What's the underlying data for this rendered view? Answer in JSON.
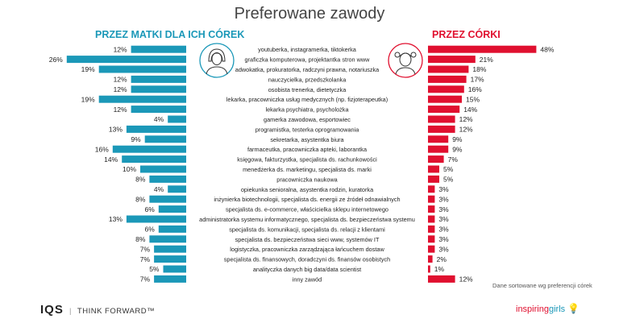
{
  "chart_data": {
    "type": "bar",
    "title": "Preferowane zawody",
    "left_header": "PRZEZ MATKI DLA ICH CÓREK",
    "right_header": "PRZEZ CÓRKI",
    "note": "Dane sortowane wg preferencji córek",
    "categories": [
      "youtuberka, instagramerka, tiktokerka",
      "graficzka komputerowa, projektantka stron www",
      "adwokatka, prokuratorka, radczyni prawna, notariuszka",
      "nauczycielka, przedszkolanka",
      "osobista trenerka, dietetyczka",
      "lekarka, pracowniczka usług medycznych (np. fizjoterapeutka)",
      "lekarka psychiatra, psycholożka",
      "gamerka zawodowa, esportowiec",
      "programistka, testerka oprogramowania",
      "sekretarka, asystentka biura",
      "farmaceutka, pracowniczka apteki, laborantka",
      "księgowa, fakturzystka, specjalista ds. rachunkowości",
      "menedżerka ds. marketingu, specjalista ds. marki",
      "pracowniczka naukowa",
      "opiekunka senioralna, asystentka rodzin, kuratorka",
      "inżynierka biotechnologii, specjalista ds. energii ze źródeł odnawialnych",
      "specjalista ds. e-commerce, właścicielka sklepu internetowego",
      "administratorka systemu informatycznego, specjalista ds. bezpieczeństwa systemu",
      "specjalista ds. komunikacji, specjalista ds. relacji z klientami",
      "specjalista ds. bezpieczeństwa sieci www, systemów IT",
      "logistyczka, pracowniczka zarządzająca łańcuchem dostaw",
      "specjalista ds. finansowych, doradczyni ds. finansów osobistych",
      "analityczka danych big data/data scientist",
      "inny zawód"
    ],
    "series": [
      {
        "name": "PRZEZ MATKI DLA ICH CÓREK",
        "color": "#1b98b8",
        "values": [
          12,
          26,
          19,
          12,
          12,
          19,
          12,
          4,
          13,
          9,
          16,
          14,
          10,
          8,
          4,
          8,
          6,
          13,
          6,
          8,
          7,
          7,
          5,
          7
        ]
      },
      {
        "name": "PRZEZ CÓRKI",
        "color": "#e0102f",
        "values": [
          48,
          21,
          18,
          17,
          16,
          15,
          14,
          12,
          12,
          9,
          9,
          7,
          5,
          5,
          3,
          3,
          3,
          3,
          3,
          3,
          3,
          2,
          1,
          12
        ]
      }
    ],
    "value_suffix": "%"
  },
  "footer": {
    "left_logo": "IQS",
    "left_tagline": "THINK FORWARD™",
    "right_logo_a": "inspiring",
    "right_logo_b": "girls"
  },
  "icons": {
    "mother": "mother-icon",
    "daughter": "daughter-icon"
  }
}
